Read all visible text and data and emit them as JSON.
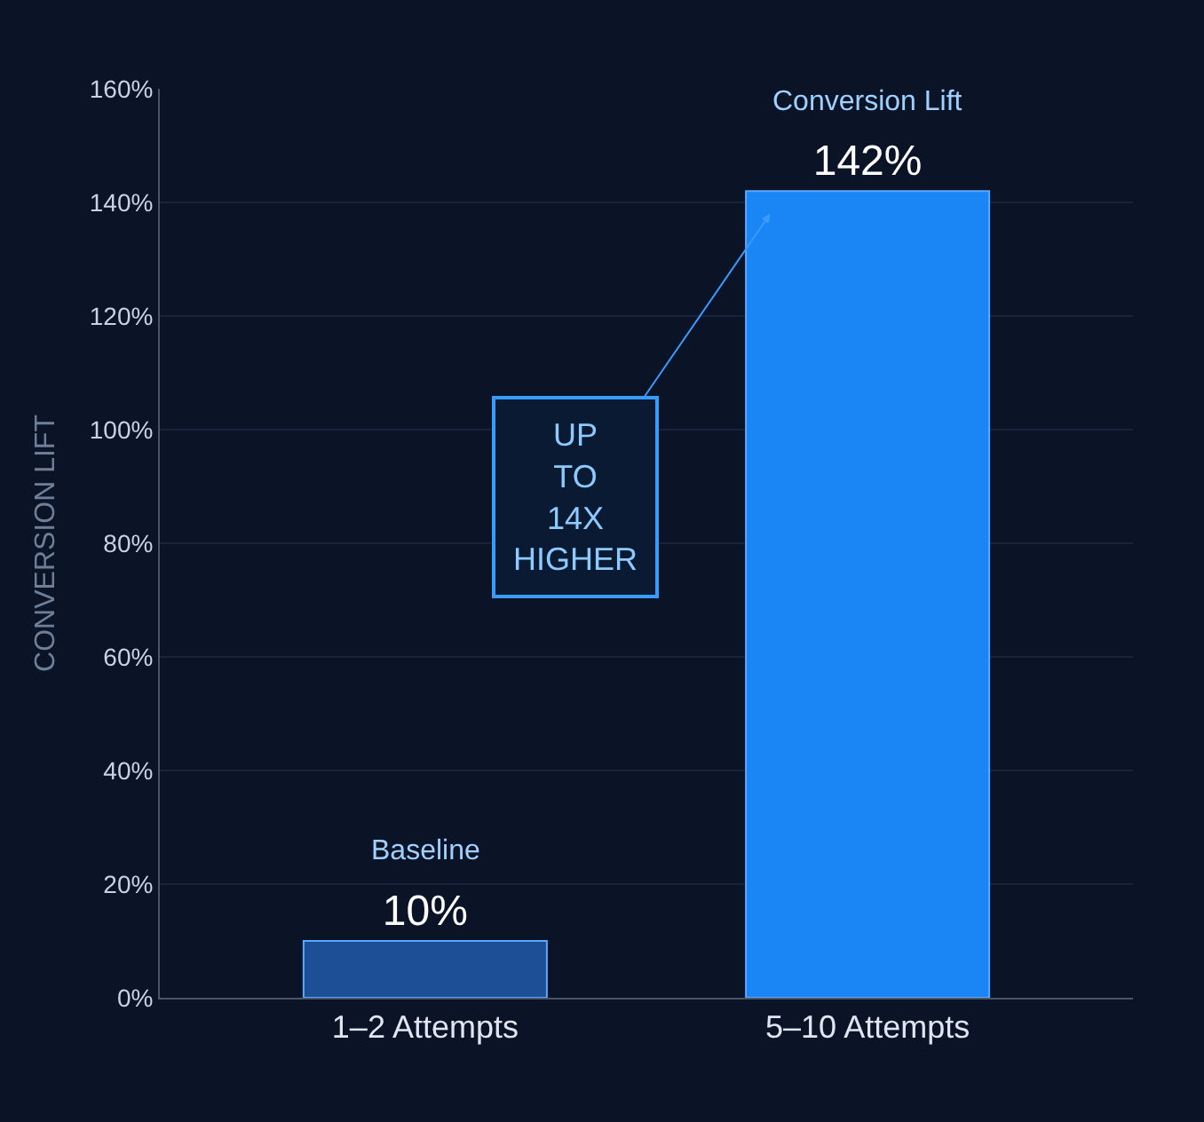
{
  "chart_data": {
    "type": "bar",
    "ylabel": "CONVERSION LIFT",
    "categories": [
      "1–2 Attempts",
      "5–10 Attempts"
    ],
    "values": [
      10,
      142
    ],
    "colors": [
      "#1d4f96",
      "#1a86f5"
    ],
    "value_labels": [
      "10%",
      "142%"
    ],
    "annotations": [
      {
        "text": "Baseline",
        "x": "1–2 Attempts",
        "y": 10
      },
      {
        "text": "Conversion Lift",
        "x": "5–10 Attempts",
        "y": 142
      },
      "UP TO 14X HIGHER"
    ],
    "ylim": [
      0,
      160
    ],
    "yticks": [
      {
        "value": 0,
        "label": "0%"
      },
      {
        "value": 20,
        "label": "20%"
      },
      {
        "value": 40,
        "label": "40%"
      },
      {
        "value": 60,
        "label": "60%"
      },
      {
        "value": 80,
        "label": "80%"
      },
      {
        "value": 100,
        "label": "100%"
      },
      {
        "value": 120,
        "label": "120%"
      },
      {
        "value": 140,
        "label": "140%"
      },
      {
        "value": 160,
        "label": "160%"
      }
    ],
    "grid": "y"
  }
}
